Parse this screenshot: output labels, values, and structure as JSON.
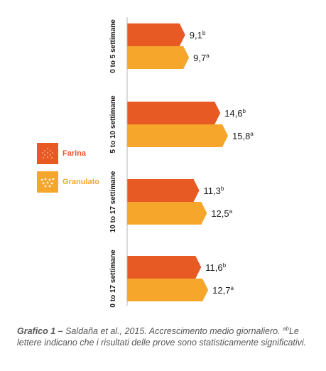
{
  "chart_data": {
    "type": "bar",
    "orientation": "horizontal",
    "categories": [
      "0 to 5 settimane",
      "5 to 10 settimane",
      "10 to 17 settimane",
      "0 to 17 settimane"
    ],
    "series": [
      {
        "name": "Farina",
        "color": "#E85A24",
        "values": [
          9.1,
          14.6,
          11.3,
          11.6
        ],
        "labels": [
          "9,1",
          "14,6",
          "11,3",
          "11,6"
        ],
        "superscripts": [
          "b",
          "b",
          "b",
          "b"
        ]
      },
      {
        "name": "Granulato",
        "color": "#F5A62B",
        "values": [
          9.7,
          15.8,
          12.5,
          12.7
        ],
        "labels": [
          "9,7",
          "15,8",
          "12,5",
          "12,7"
        ],
        "superscripts": [
          "a",
          "a",
          "a",
          "a"
        ]
      }
    ],
    "xlim": [
      0,
      15.8
    ],
    "grid": false,
    "legend_position": "left"
  },
  "caption": {
    "lead": "Grafico 1 –",
    "text1": " Saldaña et al., 2015. Accrescimento medio giornaliero. ",
    "sup": "ab",
    "text2": "Le lettere indicano che i risultati delle prove sono statisticamente significativi."
  }
}
